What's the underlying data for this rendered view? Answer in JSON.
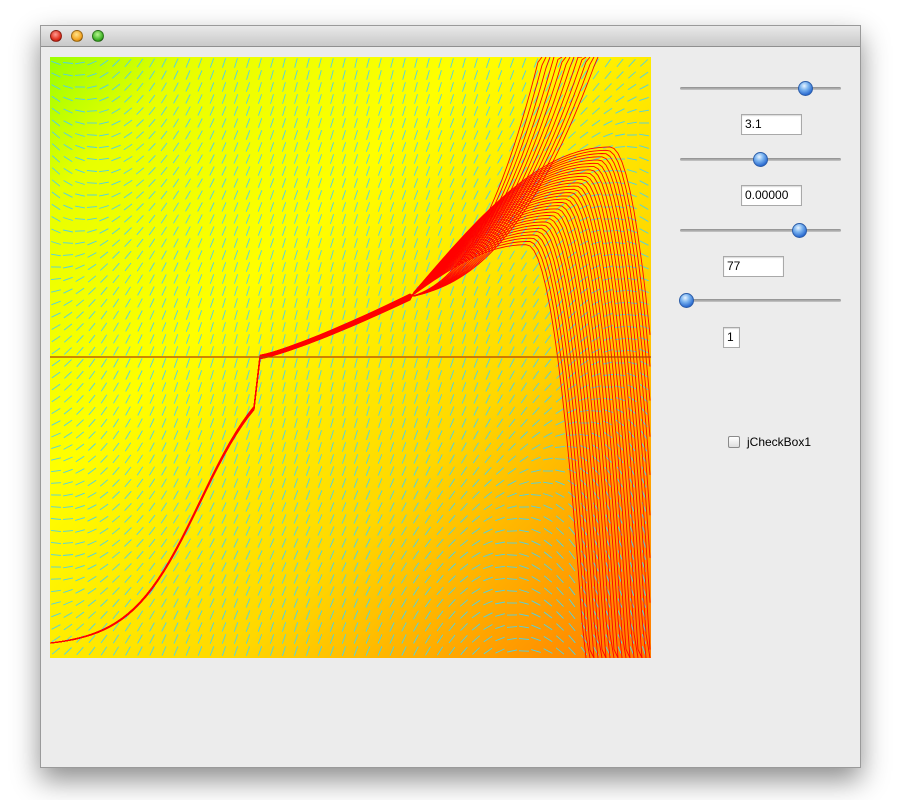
{
  "window": {
    "buttons": [
      "close",
      "minimize",
      "zoom"
    ]
  },
  "plot": {
    "description_type": "slope-field",
    "background_gradient": [
      "#9cff00",
      "#ffff00",
      "#ffd800",
      "#ff7a00"
    ],
    "field_color": "#4fd2e6",
    "curve_color": "#ff0000",
    "axis_color": "#b34000"
  },
  "controls": {
    "slider1": {
      "value_fraction": 0.81
    },
    "field1": "3.1",
    "slider2": {
      "value_fraction": 0.5
    },
    "field2": "0.00000",
    "slider3": {
      "value_fraction": 0.77
    },
    "field3": "77",
    "slider4": {
      "value_fraction": 0.0
    },
    "field4": "1",
    "checkbox": {
      "label": "jCheckBox1",
      "checked": false
    }
  }
}
